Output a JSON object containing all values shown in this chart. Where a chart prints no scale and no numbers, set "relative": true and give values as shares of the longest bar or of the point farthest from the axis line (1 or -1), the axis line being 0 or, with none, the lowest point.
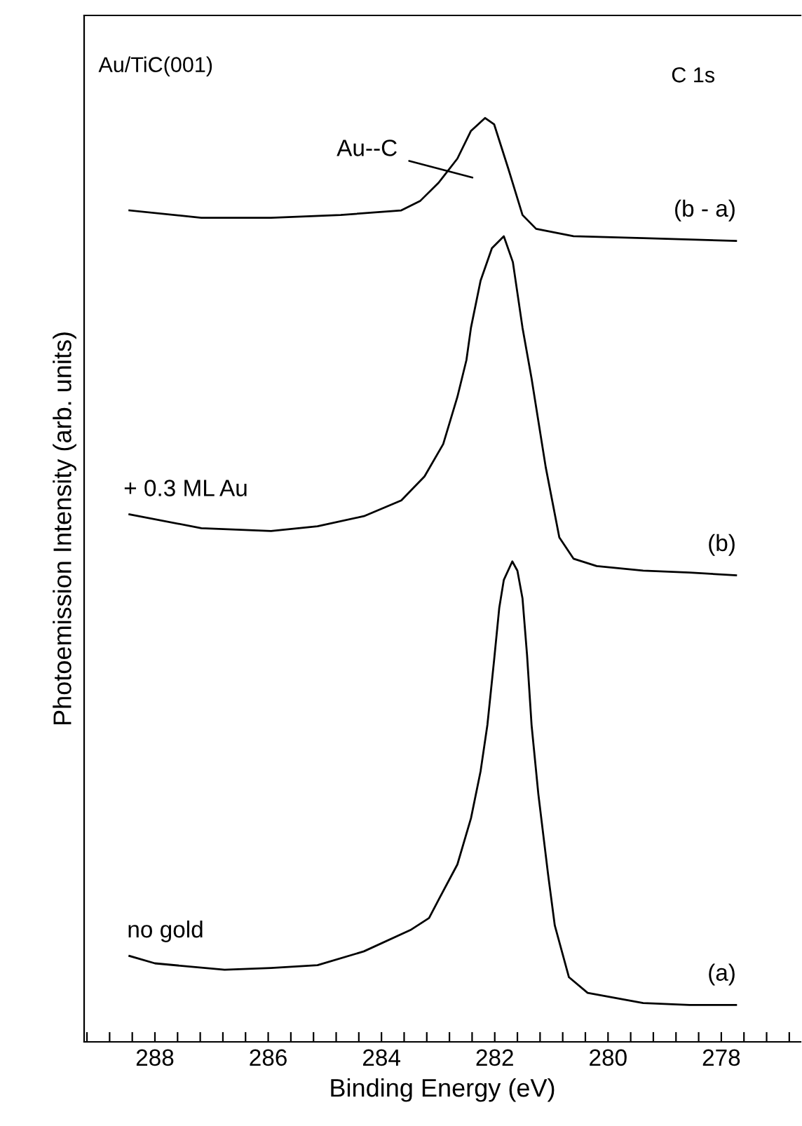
{
  "chart_data": {
    "type": "line",
    "relative": true,
    "xlabel": "Binding Energy (eV)",
    "ylabel": "Photoemission Intensity (arb. units)",
    "xlim": [
      289.25,
      276.6
    ],
    "xticks": [
      {
        "value": 289.2,
        "label": null
      },
      {
        "value": 288.8,
        "label": null
      },
      {
        "value": 288.4,
        "label": null
      },
      288,
      {
        "value": 287.6,
        "label": null
      },
      {
        "value": 287.2,
        "label": null
      },
      {
        "value": 286.8,
        "label": null
      },
      {
        "value": 286.4,
        "label": null
      },
      286,
      {
        "value": 285.6,
        "label": null
      },
      {
        "value": 285.2,
        "label": null
      },
      {
        "value": 284.8,
        "label": null
      },
      {
        "value": 284.4,
        "label": null
      },
      284,
      {
        "value": 283.6,
        "label": null
      },
      {
        "value": 283.2,
        "label": null
      },
      {
        "value": 282.8,
        "label": null
      },
      {
        "value": 282.4,
        "label": null
      },
      282,
      {
        "value": 281.6,
        "label": null
      },
      {
        "value": 281.2,
        "label": null
      },
      {
        "value": 280.8,
        "label": null
      },
      {
        "value": 280.4,
        "label": null
      },
      280,
      {
        "value": 279.6,
        "label": null
      },
      {
        "value": 279.2,
        "label": null
      },
      {
        "value": 278.8,
        "label": null
      },
      {
        "value": 278.4,
        "label": null
      },
      278,
      {
        "value": 277.6,
        "label": null
      },
      {
        "value": 277.2,
        "label": null
      },
      {
        "value": 276.8,
        "label": null
      }
    ],
    "tick_labels": "x",
    "series": [
      {
        "name": "(a)",
        "color": "#000000",
        "x": [
          288.45,
          288.0,
          286.77,
          285.95,
          285.13,
          284.31,
          283.49,
          283.16,
          282.99,
          282.66,
          282.42,
          282.25,
          282.13,
          282.01,
          281.92,
          281.84,
          281.69,
          281.6,
          281.51,
          281.43,
          281.35,
          281.23,
          281.06,
          280.94,
          280.69,
          280.36,
          279.38,
          278.56,
          277.74
        ],
        "values": [
          0.093,
          0.085,
          0.078,
          0.08,
          0.083,
          0.098,
          0.121,
          0.134,
          0.154,
          0.192,
          0.242,
          0.293,
          0.343,
          0.414,
          0.47,
          0.5,
          0.52,
          0.51,
          0.48,
          0.419,
          0.343,
          0.268,
          0.182,
          0.126,
          0.07,
          0.053,
          0.042,
          0.04,
          0.04
        ]
      },
      {
        "name": "(b)",
        "color": "#000000",
        "x": [
          288.45,
          287.18,
          285.95,
          285.13,
          284.31,
          283.65,
          283.24,
          282.91,
          282.66,
          282.5,
          282.42,
          282.25,
          282.05,
          281.84,
          281.68,
          281.51,
          281.35,
          281.1,
          280.86,
          280.61,
          280.2,
          279.38,
          278.56,
          277.74
        ],
        "values": [
          0.571,
          0.556,
          0.553,
          0.558,
          0.569,
          0.586,
          0.612,
          0.647,
          0.698,
          0.738,
          0.773,
          0.824,
          0.859,
          0.872,
          0.844,
          0.773,
          0.718,
          0.622,
          0.546,
          0.523,
          0.515,
          0.51,
          0.508,
          0.505
        ]
      },
      {
        "name": "(b - a)",
        "color": "#000000",
        "x": [
          288.45,
          287.18,
          285.95,
          284.72,
          283.65,
          283.32,
          282.99,
          282.66,
          282.42,
          282.17,
          282.01,
          281.76,
          281.51,
          281.27,
          280.61,
          279.38,
          277.74
        ],
        "values": [
          0.9,
          0.892,
          0.892,
          0.895,
          0.9,
          0.91,
          0.93,
          0.956,
          0.986,
          1.0,
          0.993,
          0.945,
          0.895,
          0.88,
          0.872,
          0.87,
          0.867
        ]
      }
    ],
    "annotations": [
      "Au/TiC(001)",
      "C 1s",
      "Au--C",
      "+ 0.3 ML Au",
      "no gold"
    ],
    "grid": false,
    "legend": false,
    "marker": "none",
    "line_style": "solid"
  }
}
